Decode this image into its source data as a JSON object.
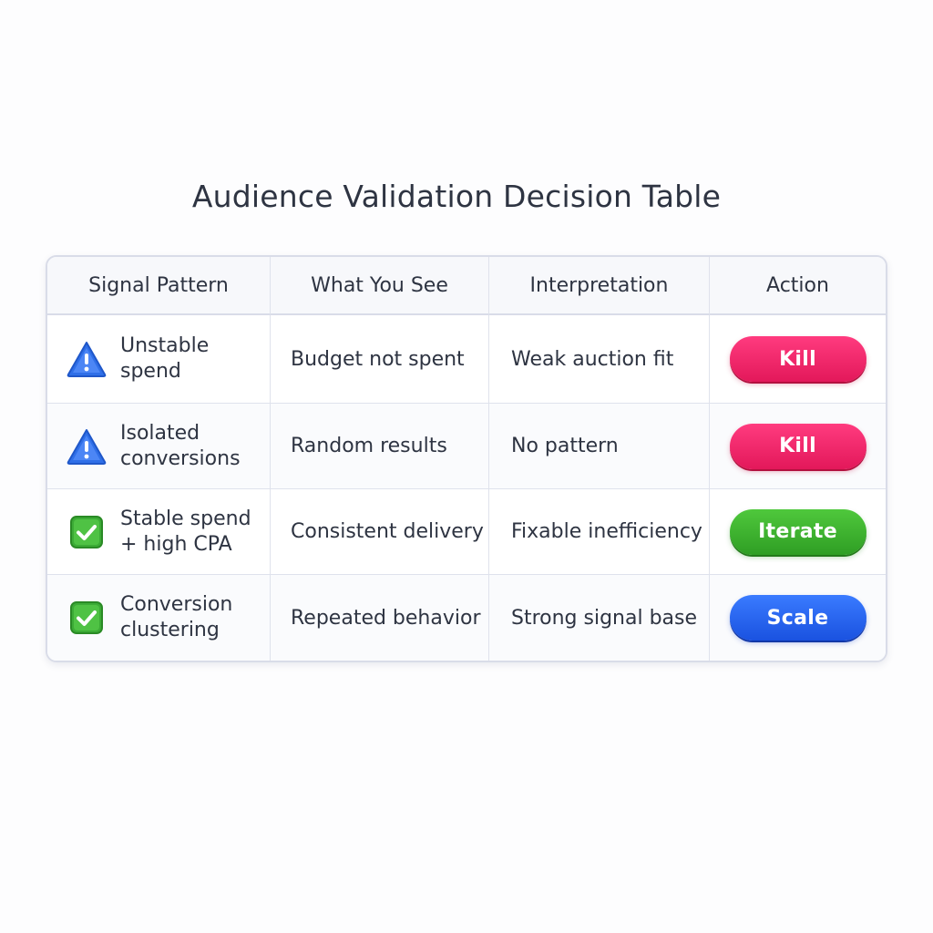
{
  "title": "Audience Validation Decision Table",
  "headers": [
    "Signal Pattern",
    "What You See",
    "Interpretation",
    "Action"
  ],
  "rows": [
    {
      "signal_lines": [
        "Unstable",
        "spend"
      ],
      "icon": "warning-icon",
      "what_you_see": "Budget not spent",
      "interpretation": "Weak auction fit",
      "action": "Kill"
    },
    {
      "signal_lines": [
        "Isolated",
        "conversions"
      ],
      "icon": "warning-icon",
      "what_you_see": "Random results",
      "interpretation": "No pattern",
      "action": "Kill"
    },
    {
      "signal_lines": [
        "Stable spend",
        "+ high CPA"
      ],
      "icon": "check-icon",
      "what_you_see": "Consistent delivery",
      "interpretation": "Fixable inefficiency",
      "action": "Iterate"
    },
    {
      "signal_lines": [
        "Conversion",
        "clustering"
      ],
      "icon": "check-icon",
      "what_you_see": "Repeated behavior",
      "interpretation": "Strong signal base",
      "action": "Scale"
    }
  ],
  "colors": {
    "kill": "#e3185a",
    "iterate": "#2f9e24",
    "scale": "#1a52e0",
    "warning": "#2f6fe8",
    "check": "#3cab36"
  }
}
